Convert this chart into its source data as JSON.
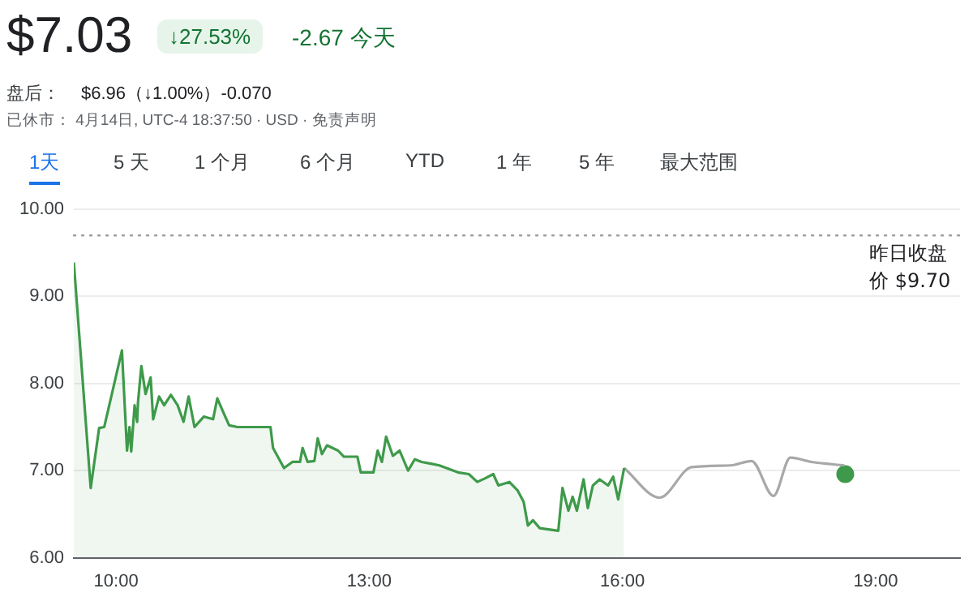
{
  "chart_data": {
    "type": "line",
    "title": "$7.03",
    "annotations": [
      "↓27.53%",
      "-2.67 今天",
      "盘后：",
      "$6.96（↓1.00%）-0.070",
      "已休市： 4月14日, UTC-4 18:37:50 · USD · 免责声明",
      "1天",
      "5 天",
      "1 个月",
      "6 个月",
      "YTD",
      "1 年",
      "5 年",
      "最大范围"
    ],
    "series": [
      {
        "type": "area",
        "color": "#3e9a4a",
        "x": [
          9.5,
          9.7,
          9.8,
          9.86,
          10.07,
          10.13,
          10.16,
          10.18,
          10.22,
          10.25,
          10.26,
          10.3,
          10.35,
          10.41,
          10.44,
          10.51,
          10.57,
          10.65,
          10.73,
          10.8,
          10.86,
          10.93,
          11.04,
          11.15,
          11.2,
          11.28,
          11.34,
          11.44,
          11.83,
          11.86,
          11.99,
          12.09,
          12.18,
          12.21,
          12.27,
          12.35,
          12.39,
          12.44,
          12.5,
          12.63,
          12.7,
          12.86,
          12.9,
          13.05,
          13.1,
          13.15,
          13.2,
          13.28,
          13.36,
          13.46,
          13.54,
          13.62,
          13.73,
          13.83,
          14.05,
          14.18,
          14.28,
          14.37,
          14.47,
          14.53,
          14.66,
          14.76,
          14.83,
          14.88,
          14.94,
          15.02,
          15.24,
          15.29,
          15.36,
          15.41,
          15.46,
          15.54,
          15.59,
          15.65,
          15.73,
          15.83,
          15.89,
          15.95,
          16.02
        ],
        "values": [
          9.39,
          6.8,
          7.49,
          7.5,
          8.38,
          7.23,
          7.5,
          7.22,
          7.75,
          7.56,
          7.78,
          8.2,
          7.88,
          8.07,
          7.59,
          7.85,
          7.75,
          7.87,
          7.75,
          7.56,
          7.85,
          7.5,
          7.62,
          7.59,
          7.83,
          7.65,
          7.52,
          7.5,
          7.5,
          7.26,
          7.03,
          7.1,
          7.1,
          7.26,
          7.1,
          7.11,
          7.37,
          7.19,
          7.29,
          7.23,
          7.16,
          7.16,
          6.98,
          6.98,
          7.23,
          7.1,
          7.39,
          7.17,
          7.23,
          7.0,
          7.13,
          7.1,
          7.08,
          7.06,
          6.98,
          6.96,
          6.87,
          6.91,
          6.96,
          6.83,
          6.87,
          6.77,
          6.64,
          6.37,
          6.43,
          6.34,
          6.31,
          6.8,
          6.54,
          6.7,
          6.54,
          6.9,
          6.57,
          6.83,
          6.9,
          6.83,
          6.93,
          6.67,
          7.03
        ]
      },
      {
        "type": "line",
        "color": "#a8a8a8",
        "x": [
          16.02,
          16.44,
          16.82,
          17.28,
          17.53,
          17.79,
          17.99,
          18.24,
          18.63
        ],
        "values": [
          7.03,
          6.69,
          7.04,
          7.06,
          7.11,
          6.71,
          7.15,
          7.1,
          7.06
        ]
      },
      {
        "type": "scatter",
        "color": "#3e9a4a",
        "marker": "circle",
        "x": [
          18.64
        ],
        "values": [
          6.96
        ]
      }
    ],
    "xlim": [
      9.5,
      20.0
    ],
    "xticks": [
      {
        "value": 10,
        "label": "10:00"
      },
      {
        "value": 13,
        "label": "13:00"
      },
      {
        "value": 16,
        "label": "16:00"
      },
      {
        "value": 19,
        "label": "19:00"
      }
    ],
    "ylim": [
      6,
      10
    ],
    "yticks": [
      {
        "value": 6,
        "label": "6.00"
      },
      {
        "value": 7,
        "label": "7.00"
      },
      {
        "value": 8,
        "label": "8.00"
      },
      {
        "value": 9,
        "label": "9.00"
      },
      {
        "value": 10,
        "label": "10.00"
      }
    ],
    "ref_lines": [
      {
        "axis": "y",
        "value": 9.7,
        "label": "昨日收盘价 $9.70",
        "color": "#9e9e9e",
        "line_style": "dotted"
      }
    ],
    "grid": "y",
    "legend": false
  }
}
